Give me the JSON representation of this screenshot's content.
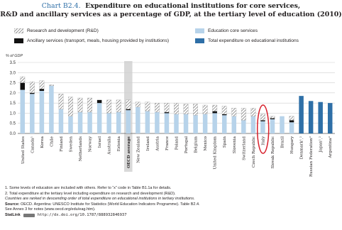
{
  "title": {
    "number": "Chart B2.4.",
    "line1": "Expenditure on educational institutions for core services,",
    "line2": "R&D and ancillary services as a percentage of GDP, at the tertiary level of education (2010)"
  },
  "legend": {
    "rd": "Research and development (R&D)",
    "ancillary": "Ancillary services (transport, meals, housing provided by institutions)",
    "core": "Education core services",
    "total": "Total expenditure on educational institutions"
  },
  "colors": {
    "core": "#b7d3ea",
    "ancillary": "#111111",
    "rd_hatch": "#6b6b6b",
    "total": "#2e6fa7",
    "oecd_band": "#d9d9d9",
    "highlight": "#d7202c"
  },
  "notes": {
    "n1": "1. Some levels of education are included with others. Refer to “x” code in Table B1.1a for details.",
    "n2": "2. Total expenditure at the tertiary level including expenditure on research and development (R&D).",
    "n3": "Countries are ranked in descending order of total expenditure on educational institutions in tertiary institutions.",
    "source_label": "Source:",
    "source_text": "OECD. Argentina: UNESCO Institute for Statistics (World Education Indicators Programme). Table B2.4.",
    "annex": "See Annex 3 for notes (www.oecd.org/edu/eag.htm).",
    "statlink_label": "StatLink",
    "statlink_url": "http://dx.doi.org/10.1787/888932846937"
  },
  "chart_data": {
    "type": "bar",
    "stacked": true,
    "ylabel": "% of GDP",
    "ylim": [
      0,
      3.5
    ],
    "yticks": [
      "0.0",
      "0.5",
      "1.0",
      "1.5",
      "2.0",
      "2.5",
      "3.0",
      "3.5"
    ],
    "grid": true,
    "highlight_category": "OECD average",
    "circled_category": "Italy",
    "categories": [
      "United States",
      "Canada¹",
      "Korea",
      "Chile",
      "Finland",
      "Sweden",
      "Netherlands",
      "Norway",
      "Israel",
      "Australia",
      "Estonia",
      "OECD average",
      "New Zealand",
      "Ireland",
      "Austria",
      "France",
      "Poland",
      "Portugal",
      "Belgium",
      "Mexico",
      "United Kingdom",
      "Spain",
      "Slovenia",
      "Switzerland",
      "Czech Republic",
      "Italy",
      "Slovak Republic",
      "Brazil",
      "Hungary",
      "Denmark¹,²",
      "Russian Federation²",
      "Japan¹,²",
      "Argentina²"
    ],
    "series": [
      {
        "name": "Education core services",
        "values": [
          2.15,
          1.95,
          2.1,
          2.35,
          1.2,
          0.85,
          1.05,
          1.05,
          1.5,
          1.0,
          1.05,
          1.15,
          1.3,
          1.1,
          1.05,
          1.0,
          0.95,
          0.95,
          0.9,
          0.95,
          1.0,
          0.9,
          0.85,
          0.65,
          0.85,
          0.6,
          0.7,
          0.85,
          0.55,
          null,
          null,
          null,
          null
        ]
      },
      {
        "name": "Ancillary services (transport, meals, housing provided by institutions)",
        "values": [
          0.35,
          0.05,
          0.1,
          0.0,
          0.0,
          0.0,
          0.0,
          0.0,
          0.15,
          0.0,
          0.0,
          0.05,
          0.0,
          0.0,
          0.0,
          0.05,
          0.0,
          0.0,
          0.0,
          0.0,
          0.1,
          0.05,
          0.0,
          0.0,
          0.0,
          0.05,
          0.05,
          0.0,
          0.1,
          null,
          null,
          null,
          null
        ]
      },
      {
        "name": "Research and development (R&D)",
        "values": [
          0.3,
          0.55,
          0.4,
          0.05,
          0.75,
          0.95,
          0.7,
          0.7,
          0.0,
          0.65,
          0.6,
          0.45,
          0.25,
          0.45,
          0.45,
          0.45,
          0.55,
          0.5,
          0.55,
          0.45,
          0.3,
          0.4,
          0.4,
          0.6,
          0.4,
          0.3,
          0.1,
          0.0,
          0.2,
          null,
          null,
          null,
          null
        ]
      },
      {
        "name": "Total expenditure on educational institutions",
        "values": [
          null,
          null,
          null,
          null,
          null,
          null,
          null,
          null,
          null,
          null,
          null,
          null,
          null,
          null,
          null,
          null,
          null,
          null,
          null,
          null,
          null,
          null,
          null,
          null,
          null,
          null,
          null,
          null,
          null,
          1.85,
          1.6,
          1.55,
          1.5
        ]
      }
    ]
  }
}
